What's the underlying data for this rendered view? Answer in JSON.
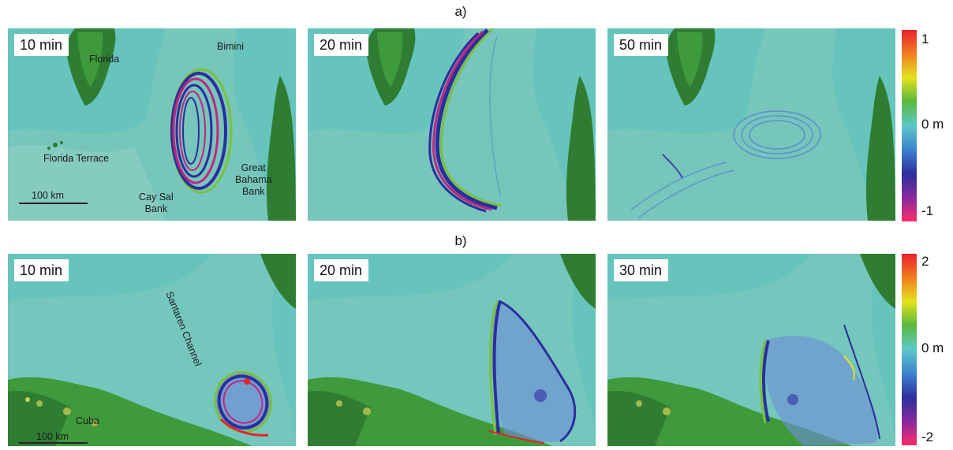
{
  "figure": {
    "row_a": {
      "label": "a)",
      "panels": [
        {
          "time": "10 min",
          "labels": {
            "florida": "Florida",
            "bimini": "Bimini",
            "florida_terrace": "Florida Terrace",
            "cay_sal": "Cay Sal\nBank",
            "great_bahama": "Great\nBahama\nBank",
            "scale": "100 km"
          }
        },
        {
          "time": "20 min"
        },
        {
          "time": "50 min"
        }
      ],
      "colorbar": {
        "max": "1",
        "mid": "0 m",
        "min": "-1"
      }
    },
    "row_b": {
      "label": "b)",
      "panels": [
        {
          "time": "10 min",
          "labels": {
            "santaren": "Santaren Channel",
            "cuba": "Cuba",
            "scale": "100 km"
          }
        },
        {
          "time": "20 min"
        },
        {
          "time": "30 min"
        }
      ],
      "colorbar": {
        "max": "2",
        "mid": "0 m",
        "min": "-2"
      }
    }
  },
  "colors": {
    "ocean": "#66c4bd",
    "shelf": "#86c9bd",
    "land_dark": "#2f7d32",
    "land_mid": "#3f9a3c",
    "wave_blue": "#2b2f9b",
    "wave_magenta": "#c2267f",
    "wave_red": "#e8212c",
    "wave_yellow": "#e3e21e"
  }
}
